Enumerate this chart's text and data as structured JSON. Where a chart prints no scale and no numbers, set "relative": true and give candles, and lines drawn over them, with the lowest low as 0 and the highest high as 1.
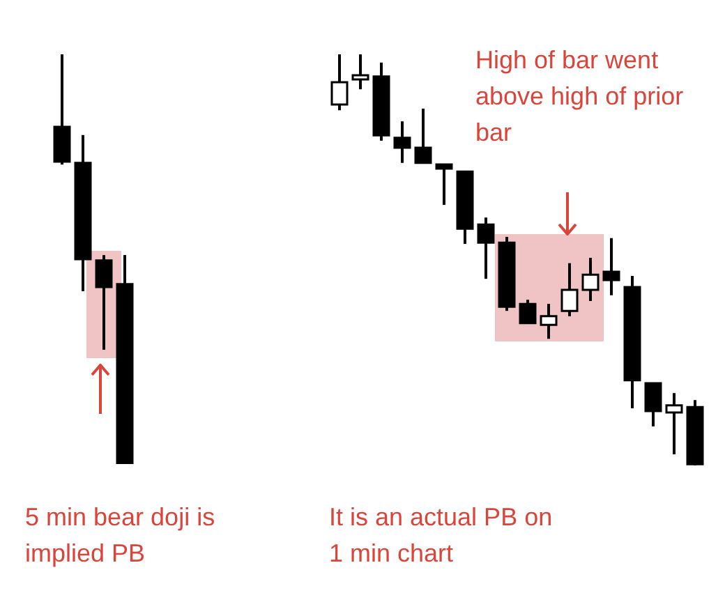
{
  "chart_data": [
    {
      "type": "candlestick",
      "relative": true,
      "categories": [
        null,
        null,
        null,
        null
      ],
      "ohlc": [
        [
          0.823,
          1,
          0.731,
          0.738
        ],
        [
          0.735,
          0.803,
          0.422,
          0.5
        ],
        [
          0.497,
          0.51,
          0.279,
          0.432
        ],
        [
          0.439,
          0.51,
          0,
          0
        ]
      ],
      "annotations": [
        "5 min bear doji is implied PB"
      ]
    },
    {
      "type": "candlestick",
      "relative": true,
      "categories": [
        null,
        null,
        null,
        null,
        null,
        null,
        null,
        null,
        null,
        null,
        null,
        null,
        null,
        null,
        null,
        null,
        null,
        null
      ],
      "ohlc": [
        [
          0.878,
          1,
          0.864,
          0.932
        ],
        [
          0.939,
          1,
          0.915,
          0.949
        ],
        [
          0.946,
          0.98,
          0.79,
          0.803
        ],
        [
          0.797,
          0.837,
          0.736,
          0.773
        ],
        [
          0.773,
          0.868,
          0.736,
          0.736
        ],
        [
          0.732,
          0.732,
          0.634,
          0.722
        ],
        [
          0.715,
          0.715,
          0.539,
          0.576
        ],
        [
          0.586,
          0.603,
          0.454,
          0.542
        ],
        [
          0.542,
          0.556,
          0.376,
          0.386
        ],
        [
          0.393,
          0.403,
          0.346,
          0.346
        ],
        [
          0.342,
          0.393,
          0.308,
          0.363
        ],
        [
          0.376,
          0.492,
          0.363,
          0.427
        ],
        [
          0.427,
          0.505,
          0.4,
          0.464
        ],
        [
          0.471,
          0.553,
          0.414,
          0.451
        ],
        [
          0.434,
          0.461,
          0.139,
          0.207
        ],
        [
          0.2,
          0.2,
          0.095,
          0.132
        ],
        [
          0.129,
          0.176,
          0.027,
          0.146
        ],
        [
          0.142,
          0.159,
          0,
          0.003
        ]
      ],
      "annotations": [
        "High of bar went above high of prior bar",
        "It is an actual PB on 1 min chart"
      ]
    }
  ]
}
